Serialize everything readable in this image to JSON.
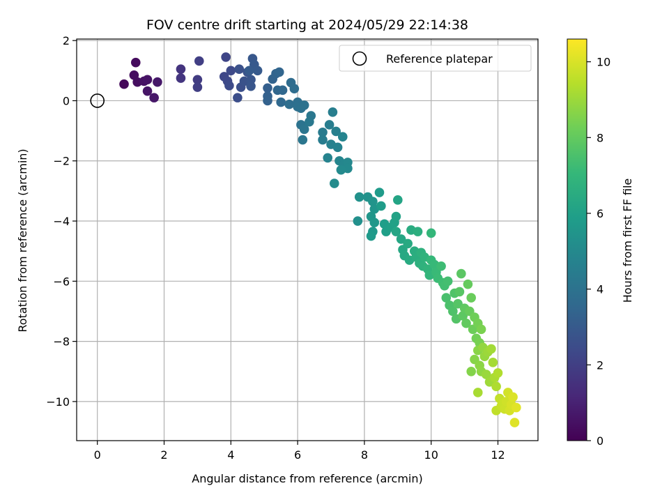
{
  "chart_data": {
    "type": "scatter",
    "title": "FOV centre drift starting at 2024/05/29 22:14:38",
    "xlabel": "Angular distance from reference (arcmin)",
    "ylabel": "Rotation from reference (arcmin)",
    "xlim": [
      -0.62,
      13.2
    ],
    "ylim": [
      -11.3,
      2.05
    ],
    "xticks": [
      0,
      2,
      4,
      6,
      8,
      10,
      12
    ],
    "yticks": [
      2,
      0,
      -2,
      -4,
      -6,
      -8,
      -10
    ],
    "ytick_labels": [
      "2",
      "0",
      "−2",
      "−4",
      "−6",
      "−8",
      "−10"
    ],
    "grid": true,
    "legend": {
      "position": "top-right",
      "label": "Reference platepar",
      "marker": "open-circle"
    },
    "reference_point": {
      "x": 0,
      "y": 0
    },
    "colorbar": {
      "label": "Hours from first FF file",
      "min": 0,
      "max": 10.6,
      "ticks": [
        0,
        2,
        4,
        6,
        8,
        10
      ],
      "colormap": "viridis",
      "colors": [
        "#440154",
        "#482878",
        "#3e4989",
        "#31688e",
        "#26828e",
        "#1f9e89",
        "#35b779",
        "#6ece58",
        "#b5de2b",
        "#fde725"
      ]
    },
    "points_columns": [
      "x",
      "y",
      "hours"
    ],
    "points": [
      [
        0.8,
        0.55,
        0.2
      ],
      [
        1.15,
        1.27,
        0.3
      ],
      [
        1.1,
        0.85,
        0.35
      ],
      [
        1.2,
        0.62,
        0.4
      ],
      [
        1.4,
        0.65,
        0.5
      ],
      [
        1.5,
        0.7,
        0.55
      ],
      [
        1.5,
        0.32,
        0.6
      ],
      [
        1.7,
        0.1,
        0.65
      ],
      [
        1.8,
        0.62,
        0.7
      ],
      [
        2.5,
        1.05,
        1.6
      ],
      [
        2.5,
        0.75,
        1.65
      ],
      [
        3.0,
        0.7,
        1.9
      ],
      [
        3.0,
        0.45,
        1.95
      ],
      [
        3.05,
        1.32,
        2.0
      ],
      [
        3.85,
        1.45,
        2.2
      ],
      [
        3.8,
        0.8,
        2.3
      ],
      [
        3.9,
        0.65,
        2.35
      ],
      [
        4.0,
        1.0,
        2.4
      ],
      [
        3.95,
        0.5,
        2.45
      ],
      [
        4.2,
        0.1,
        2.55
      ],
      [
        4.3,
        0.45,
        2.6
      ],
      [
        4.25,
        1.05,
        2.65
      ],
      [
        4.4,
        0.65,
        2.7
      ],
      [
        4.5,
        0.95,
        2.75
      ],
      [
        4.6,
        0.7,
        2.8
      ],
      [
        4.6,
        0.48,
        2.85
      ],
      [
        4.65,
        1.4,
        2.9
      ],
      [
        4.7,
        1.2,
        2.95
      ],
      [
        4.8,
        1.0,
        3.0
      ],
      [
        4.55,
        1.0,
        3.05
      ],
      [
        5.1,
        0.42,
        3.2
      ],
      [
        5.1,
        0.15,
        3.25
      ],
      [
        5.1,
        0.0,
        3.3
      ],
      [
        5.25,
        0.72,
        3.35
      ],
      [
        5.35,
        0.9,
        3.4
      ],
      [
        5.45,
        0.95,
        3.45
      ],
      [
        5.4,
        0.35,
        3.5
      ],
      [
        5.55,
        0.35,
        3.55
      ],
      [
        5.5,
        -0.05,
        3.6
      ],
      [
        5.8,
        0.6,
        3.7
      ],
      [
        5.9,
        0.4,
        3.75
      ],
      [
        5.75,
        -0.12,
        3.8
      ],
      [
        6.0,
        -0.05,
        3.85
      ],
      [
        6.0,
        -0.2,
        3.9
      ],
      [
        6.1,
        -0.25,
        3.95
      ],
      [
        6.2,
        -0.15,
        4.0
      ],
      [
        6.1,
        -0.8,
        4.05
      ],
      [
        6.2,
        -0.95,
        4.1
      ],
      [
        6.15,
        -1.3,
        4.15
      ],
      [
        6.4,
        -0.5,
        4.2
      ],
      [
        6.35,
        -0.7,
        4.25
      ],
      [
        6.75,
        -1.05,
        4.4
      ],
      [
        6.75,
        -1.3,
        4.45
      ],
      [
        6.95,
        -0.8,
        4.5
      ],
      [
        7.05,
        -0.38,
        4.55
      ],
      [
        7.15,
        -1.02,
        4.6
      ],
      [
        7.0,
        -1.45,
        4.65
      ],
      [
        7.2,
        -1.55,
        4.7
      ],
      [
        6.9,
        -1.9,
        4.75
      ],
      [
        7.35,
        -1.2,
        4.8
      ],
      [
        7.25,
        -2.0,
        4.85
      ],
      [
        7.4,
        -2.1,
        4.9
      ],
      [
        7.5,
        -2.05,
        4.95
      ],
      [
        7.5,
        -2.25,
        5.0
      ],
      [
        7.3,
        -2.3,
        5.05
      ],
      [
        7.1,
        -2.75,
        5.1
      ],
      [
        7.8,
        -4.0,
        5.3
      ],
      [
        7.85,
        -3.2,
        5.35
      ],
      [
        8.1,
        -3.2,
        5.4
      ],
      [
        8.25,
        -3.35,
        5.45
      ],
      [
        8.3,
        -3.6,
        5.5
      ],
      [
        8.2,
        -3.85,
        5.55
      ],
      [
        8.3,
        -4.05,
        5.6
      ],
      [
        8.25,
        -4.35,
        5.65
      ],
      [
        8.2,
        -4.5,
        5.7
      ],
      [
        8.45,
        -3.05,
        5.75
      ],
      [
        8.5,
        -3.5,
        5.8
      ],
      [
        8.6,
        -4.1,
        5.9
      ],
      [
        8.65,
        -4.35,
        5.95
      ],
      [
        8.8,
        -4.2,
        6.0
      ],
      [
        8.9,
        -4.05,
        6.05
      ],
      [
        8.95,
        -3.85,
        6.1
      ],
      [
        9.0,
        -3.3,
        6.15
      ],
      [
        8.95,
        -4.35,
        6.2
      ],
      [
        9.1,
        -4.6,
        6.25
      ],
      [
        9.15,
        -4.95,
        6.3
      ],
      [
        9.2,
        -5.15,
        6.35
      ],
      [
        9.3,
        -4.75,
        6.4
      ],
      [
        9.35,
        -5.3,
        6.45
      ],
      [
        9.4,
        -4.3,
        6.5
      ],
      [
        9.5,
        -5.0,
        6.55
      ],
      [
        9.55,
        -5.2,
        6.6
      ],
      [
        9.6,
        -4.35,
        6.65
      ],
      [
        9.65,
        -5.4,
        6.7
      ],
      [
        9.7,
        -5.05,
        6.75
      ],
      [
        9.75,
        -5.5,
        6.8
      ],
      [
        9.8,
        -5.2,
        6.85
      ],
      [
        9.9,
        -5.6,
        6.9
      ],
      [
        9.95,
        -5.8,
        6.95
      ],
      [
        10.0,
        -4.4,
        7.0
      ],
      [
        10.0,
        -5.3,
        7.05
      ],
      [
        10.1,
        -5.45,
        7.1
      ],
      [
        10.15,
        -5.7,
        7.15
      ],
      [
        10.2,
        -5.9,
        7.2
      ],
      [
        10.3,
        -5.5,
        7.25
      ],
      [
        10.35,
        -6.05,
        7.3
      ],
      [
        10.4,
        -6.15,
        7.35
      ],
      [
        10.5,
        -6.0,
        7.4
      ],
      [
        10.45,
        -6.55,
        7.5
      ],
      [
        10.55,
        -6.8,
        7.55
      ],
      [
        10.65,
        -7.0,
        7.6
      ],
      [
        10.7,
        -6.4,
        7.65
      ],
      [
        10.75,
        -7.25,
        7.7
      ],
      [
        10.8,
        -6.75,
        7.75
      ],
      [
        10.85,
        -6.35,
        7.8
      ],
      [
        10.9,
        -5.75,
        7.85
      ],
      [
        10.95,
        -7.15,
        7.9
      ],
      [
        11.0,
        -6.9,
        7.95
      ],
      [
        11.05,
        -7.4,
        8.0
      ],
      [
        11.1,
        -6.1,
        8.05
      ],
      [
        11.15,
        -7.0,
        8.1
      ],
      [
        11.2,
        -6.55,
        8.15
      ],
      [
        11.25,
        -7.6,
        8.2
      ],
      [
        11.3,
        -7.2,
        8.25
      ],
      [
        11.35,
        -7.9,
        8.3
      ],
      [
        11.4,
        -7.4,
        8.35
      ],
      [
        11.45,
        -8.05,
        8.4
      ],
      [
        11.5,
        -7.6,
        8.45
      ],
      [
        11.2,
        -9.0,
        8.6
      ],
      [
        11.3,
        -8.6,
        8.65
      ],
      [
        11.4,
        -8.3,
        8.7
      ],
      [
        11.45,
        -8.8,
        8.75
      ],
      [
        11.5,
        -9.0,
        8.8
      ],
      [
        11.55,
        -8.2,
        8.85
      ],
      [
        11.6,
        -8.5,
        8.9
      ],
      [
        11.65,
        -9.1,
        8.95
      ],
      [
        11.7,
        -8.35,
        9.0
      ],
      [
        11.75,
        -9.35,
        9.05
      ],
      [
        11.8,
        -8.25,
        9.1
      ],
      [
        11.85,
        -8.7,
        9.15
      ],
      [
        11.4,
        -9.7,
        9.2
      ],
      [
        11.9,
        -9.2,
        9.25
      ],
      [
        11.95,
        -9.5,
        9.3
      ],
      [
        12.0,
        -9.05,
        9.35
      ],
      [
        11.95,
        -10.3,
        9.6
      ],
      [
        12.05,
        -9.9,
        9.65
      ],
      [
        12.1,
        -10.15,
        9.7
      ],
      [
        12.15,
        -10.05,
        9.75
      ],
      [
        12.2,
        -10.25,
        9.8
      ],
      [
        12.25,
        -10.0,
        9.85
      ],
      [
        12.3,
        -9.7,
        9.9
      ],
      [
        12.35,
        -10.3,
        9.95
      ],
      [
        12.4,
        -10.1,
        10.0
      ],
      [
        12.45,
        -9.85,
        10.05
      ],
      [
        12.5,
        -10.7,
        10.1
      ],
      [
        12.55,
        -10.2,
        10.15
      ]
    ]
  }
}
